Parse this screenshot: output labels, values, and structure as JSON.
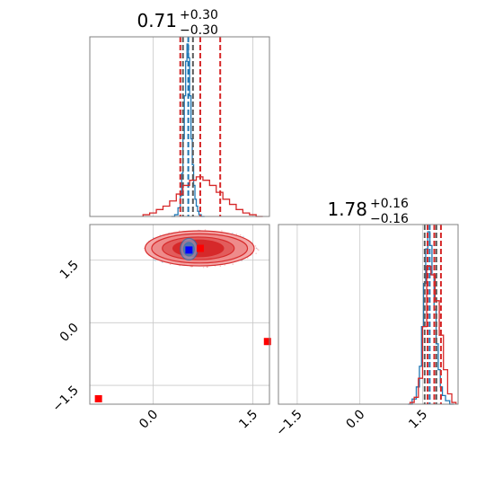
{
  "chart_data": [
    {
      "type": "histogram",
      "panel": "marginal-top",
      "title": "0.71",
      "title_upper": "+0.30",
      "title_lower": "−0.30",
      "xlim": [
        -0.95,
        1.75
      ],
      "ylim": [
        0,
        1
      ],
      "grid": true,
      "grid_x": [
        0.0,
        1.5
      ],
      "series": [
        {
          "color": "#1f77b4",
          "x": [
            0.3,
            0.35,
            0.4,
            0.42,
            0.44,
            0.46,
            0.48,
            0.5,
            0.52,
            0.54,
            0.56,
            0.58,
            0.6,
            0.62,
            0.64,
            0.66,
            0.68,
            0.7,
            0.75
          ],
          "y": [
            0.0,
            0.01,
            0.05,
            0.12,
            0.25,
            0.45,
            0.7,
            0.9,
            1.0,
            0.92,
            0.7,
            0.45,
            0.3,
            0.18,
            0.1,
            0.06,
            0.03,
            0.01,
            0.0
          ],
          "quantiles": [
            0.45,
            0.53,
            0.6
          ]
        },
        {
          "color": "#d62728",
          "x": [
            -0.1,
            0.0,
            0.1,
            0.2,
            0.3,
            0.4,
            0.5,
            0.6,
            0.7,
            0.8,
            0.9,
            1.0,
            1.1,
            1.2,
            1.3,
            1.4,
            1.5,
            1.6
          ],
          "y": [
            0.01,
            0.02,
            0.04,
            0.06,
            0.09,
            0.13,
            0.18,
            0.21,
            0.23,
            0.21,
            0.18,
            0.14,
            0.1,
            0.07,
            0.04,
            0.02,
            0.01,
            0.0
          ],
          "quantiles": [
            0.41,
            0.71,
            1.01
          ]
        }
      ]
    },
    {
      "type": "scatter-contour",
      "panel": "joint",
      "xlim": [
        -0.95,
        1.75
      ],
      "ylim": [
        -1.95,
        2.35
      ],
      "grid": true,
      "grid_x": [
        0.0,
        1.5
      ],
      "grid_y": [
        -1.5,
        0.0,
        1.5
      ],
      "xticks": [
        "0.0",
        "1.5"
      ],
      "yticks": [
        "−1.5",
        "0.0",
        "1.5"
      ],
      "contours_red": [
        {
          "cx": 0.7,
          "cy": 1.78,
          "rx": 0.82,
          "ry": 0.42
        },
        {
          "cx": 0.7,
          "cy": 1.78,
          "rx": 0.72,
          "ry": 0.35
        },
        {
          "cx": 0.68,
          "cy": 1.78,
          "rx": 0.54,
          "ry": 0.27
        },
        {
          "cx": 0.68,
          "cy": 1.78,
          "rx": 0.38,
          "ry": 0.2
        }
      ],
      "contours_blue": [
        {
          "cx": 0.54,
          "cy": 1.76,
          "rx": 0.13,
          "ry": 0.26
        },
        {
          "cx": 0.54,
          "cy": 1.76,
          "rx": 0.08,
          "ry": 0.16
        }
      ],
      "points": [
        {
          "x": 0.54,
          "y": 1.74,
          "color": "#0000ff"
        },
        {
          "x": 0.71,
          "y": 1.78,
          "color": "#ff0000"
        },
        {
          "x": -0.82,
          "y": -1.82,
          "color": "#ff0000"
        },
        {
          "x": 1.72,
          "y": -0.45,
          "color": "#ff0000"
        }
      ]
    },
    {
      "type": "histogram",
      "panel": "marginal-right",
      "title": "1.78",
      "title_upper": "+0.16",
      "title_lower": "−0.16",
      "xlim": [
        -1.95,
        2.35
      ],
      "ylim": [
        0,
        1
      ],
      "grid": true,
      "grid_x": [
        -1.5,
        0.0,
        1.5
      ],
      "xticks": [
        "−1.5",
        "0.0",
        "1.5"
      ],
      "series": [
        {
          "color": "#1f77b4",
          "x": [
            1.2,
            1.3,
            1.4,
            1.45,
            1.5,
            1.55,
            1.6,
            1.65,
            1.7,
            1.75,
            1.8,
            1.85,
            1.9,
            1.95,
            2.0,
            2.1,
            2.2
          ],
          "y": [
            0.0,
            0.03,
            0.1,
            0.22,
            0.45,
            0.7,
            0.9,
            1.0,
            0.92,
            0.75,
            0.55,
            0.35,
            0.2,
            0.1,
            0.05,
            0.02,
            0.0
          ],
          "quantiles": [
            1.55,
            1.67,
            1.83
          ]
        },
        {
          "color": "#d62728",
          "x": [
            1.25,
            1.35,
            1.45,
            1.55,
            1.65,
            1.75,
            1.85,
            1.95,
            2.05,
            2.15,
            2.25
          ],
          "y": [
            0.01,
            0.04,
            0.15,
            0.45,
            0.8,
            0.75,
            0.6,
            0.4,
            0.2,
            0.06,
            0.01
          ],
          "quantiles": [
            1.62,
            1.78,
            1.94
          ]
        }
      ]
    }
  ],
  "colors": {
    "red": "#d62728",
    "red_fill": "#f4a3a3",
    "blue": "#1f77b4",
    "grid": "#c8c8c8",
    "frame": "#808080",
    "quantile_gray": "#5a5a5a"
  }
}
